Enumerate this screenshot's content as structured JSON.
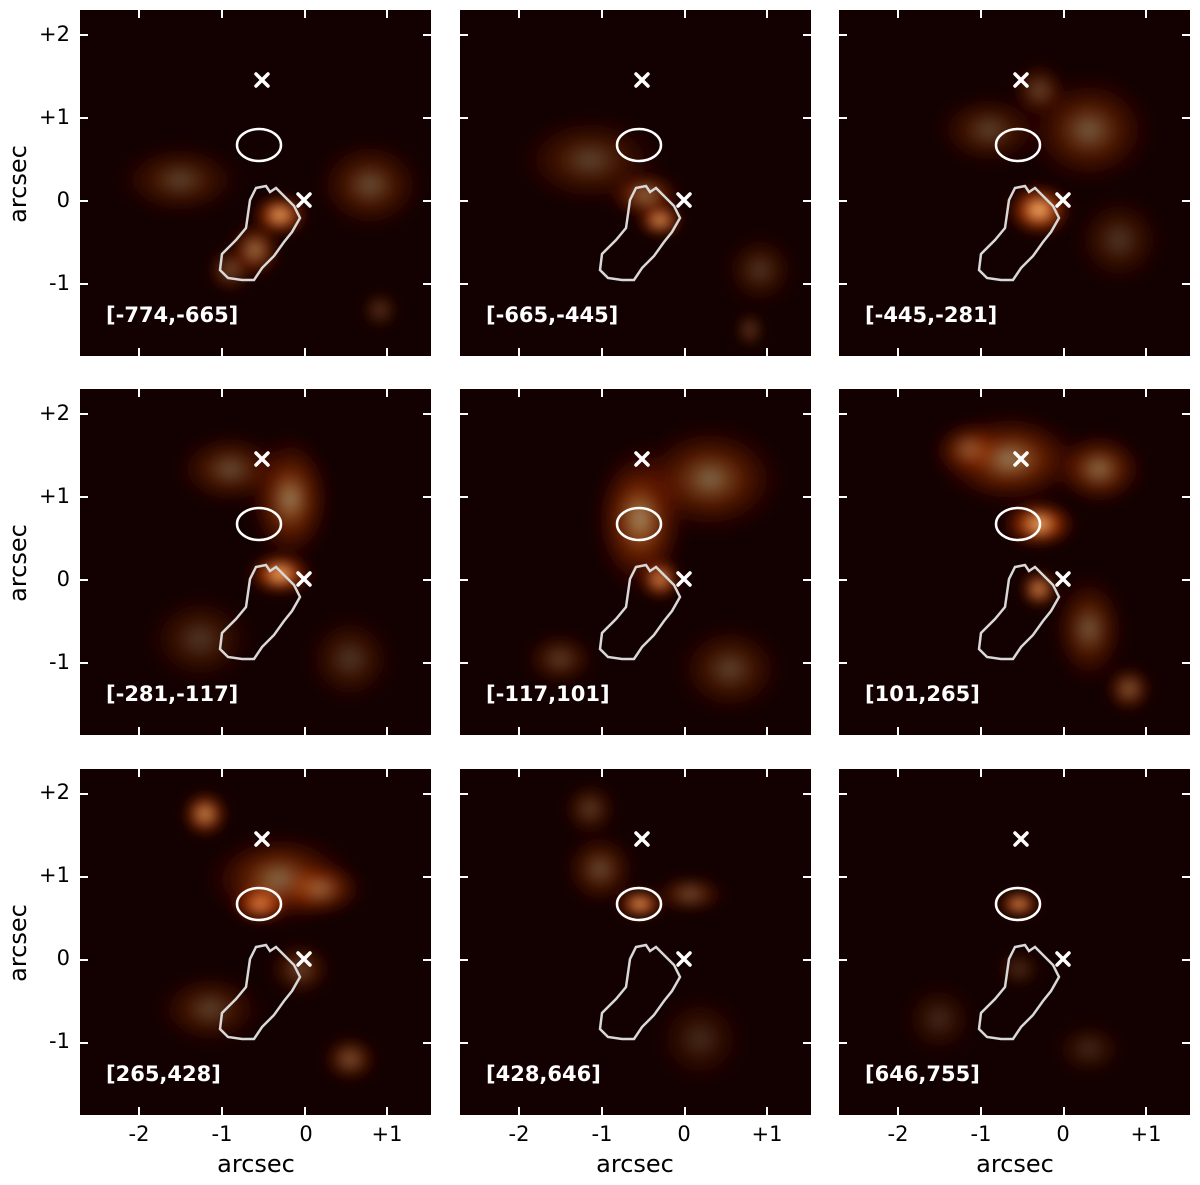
{
  "figure": {
    "axis_label": "arcsec",
    "y_ticks": [
      "+2",
      "+1",
      "0",
      "-1"
    ],
    "x_ticks": [
      "-2",
      "-1",
      "0",
      "+1"
    ],
    "colormap": [
      "#000000",
      "#3a0500",
      "#7a1a00",
      "#c24000",
      "#f07a20",
      "#ffd8a0",
      "#ffffff"
    ],
    "marker_color": "#ffffff",
    "panels": [
      {
        "label": "[-774,-665]"
      },
      {
        "label": "[-665,-445]"
      },
      {
        "label": "[-445,-281]"
      },
      {
        "label": "[-281,-117]"
      },
      {
        "label": "[-117,101]"
      },
      {
        "label": "[101,265]"
      },
      {
        "label": "[265,428]"
      },
      {
        "label": "[428,646]"
      },
      {
        "label": "[646,755]"
      }
    ]
  }
}
